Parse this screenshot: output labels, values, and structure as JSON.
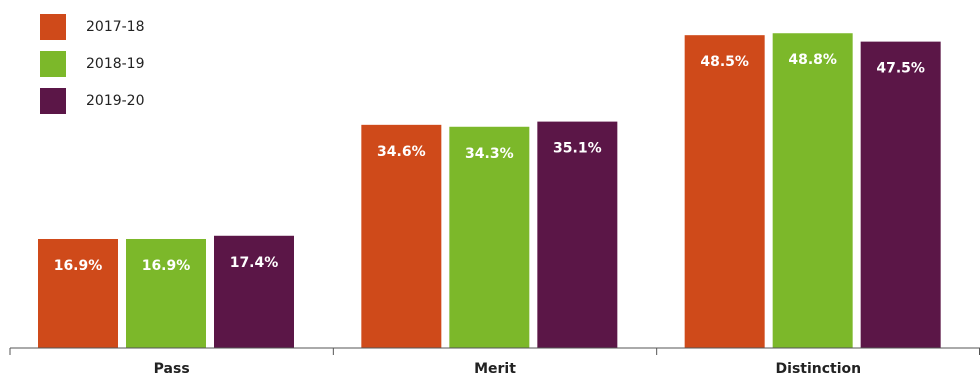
{
  "chart_data": {
    "type": "bar",
    "title": "",
    "xlabel": "",
    "ylabel": "",
    "categories": [
      "Pass",
      "Merit",
      "Distinction"
    ],
    "series": [
      {
        "name": "2017-18",
        "color": "#cf4a1a",
        "values": [
          16.9,
          34.6,
          48.5
        ],
        "labels": [
          "16.9%",
          "34.6%",
          "48.5%"
        ]
      },
      {
        "name": "2018-19",
        "color": "#7cb82a",
        "values": [
          16.9,
          34.3,
          48.8
        ],
        "labels": [
          "16.9%",
          "34.3%",
          "48.8%"
        ]
      },
      {
        "name": "2019-20",
        "color": "#5b1647",
        "values": [
          17.4,
          35.1,
          47.5
        ],
        "labels": [
          "17.4%",
          "35.1%",
          "47.5%"
        ]
      }
    ],
    "value_format": "percent",
    "y_axis_visible": false,
    "grid": false,
    "legend": "top-left"
  }
}
